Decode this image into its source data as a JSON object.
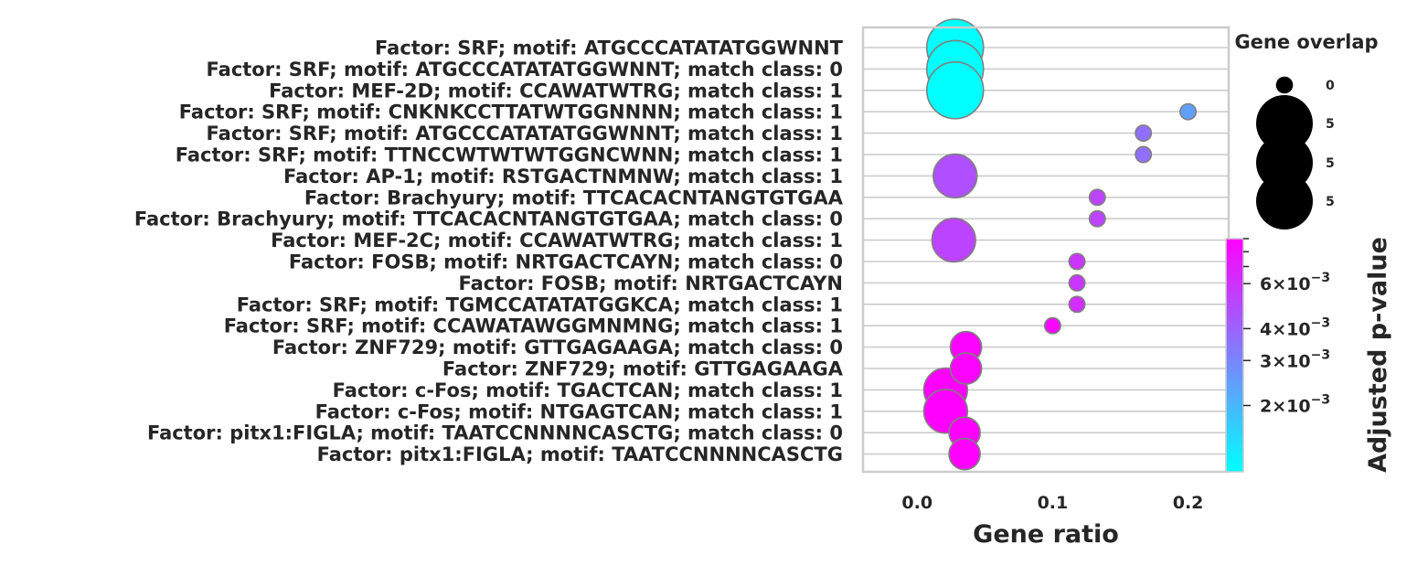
{
  "chart_data": {
    "type": "scatter",
    "xlabel": "Gene ratio",
    "xlim": [
      -0.04,
      0.23
    ],
    "xticks": [
      "0.0",
      "0.1",
      "0.2"
    ],
    "xtick_values": [
      0.0,
      0.1,
      0.2
    ],
    "grid": true,
    "colorbar": {
      "label": "Adjusted p-value",
      "scale": "log",
      "range": [
        0.0011,
        0.009
      ],
      "colormap": "cool",
      "colors": [
        "#00ffff",
        "#ff00ff"
      ],
      "ticks": [
        {
          "value": 0.006,
          "mant": "6",
          "exp": "−3"
        },
        {
          "value": 0.004,
          "mant": "4",
          "exp": "−3"
        },
        {
          "value": 0.003,
          "mant": "3",
          "exp": "−3"
        },
        {
          "value": 0.002,
          "mant": "2",
          "exp": "−3"
        }
      ]
    },
    "size_legend": {
      "title": "Gene overlap",
      "position": "top-right",
      "labels": [
        "0",
        "5",
        "5",
        "5"
      ],
      "sizes": [
        0.3,
        1,
        1,
        1
      ]
    },
    "points": [
      {
        "label": "Factor: SRF; motif: ATGCCCATATATGGWNNT",
        "x": 0.028,
        "size": 1.0,
        "padj": 0.0011
      },
      {
        "label": "Factor: SRF; motif: ATGCCCATATATGGWNNT; match class: 0",
        "x": 0.028,
        "size": 1.0,
        "padj": 0.0011
      },
      {
        "label": "Factor: MEF-2D; motif: CCAWATWTRG; match class: 1",
        "x": 0.028,
        "size": 1.0,
        "padj": 0.0011
      },
      {
        "label": "Factor: SRF; motif: CNKNKCCTTATWTGGNNNN; match class: 1",
        "x": 0.2,
        "size": 0.28,
        "padj": 0.0024
      },
      {
        "label": "Factor: SRF; motif: ATGCCCATATATGGWNNT; match class: 1",
        "x": 0.167,
        "size": 0.28,
        "padj": 0.0036
      },
      {
        "label": "Factor: SRF; motif: TTNCCWTWTWTGGNCWNN; match class: 1",
        "x": 0.167,
        "size": 0.28,
        "padj": 0.0036
      },
      {
        "label": "Factor: AP-1; motif: RSTGACTNMNW; match class: 1",
        "x": 0.028,
        "size": 0.77,
        "padj": 0.0047
      },
      {
        "label": "Factor: Brachyury; motif: TTCACACNTANGTGTGAA",
        "x": 0.133,
        "size": 0.28,
        "padj": 0.0052
      },
      {
        "label": "Factor: Brachyury; motif: TTCACACNTANGTGTGAA; match class: 0",
        "x": 0.133,
        "size": 0.28,
        "padj": 0.0052
      },
      {
        "label": "Factor: MEF-2C; motif: CCAWATWTRG; match class: 1",
        "x": 0.027,
        "size": 0.77,
        "padj": 0.0052
      },
      {
        "label": "Factor: FOSB; motif: NRTGACTCAYN; match class: 0",
        "x": 0.118,
        "size": 0.28,
        "padj": 0.0058
      },
      {
        "label": "Factor: FOSB; motif: NRTGACTCAYN",
        "x": 0.118,
        "size": 0.28,
        "padj": 0.0058
      },
      {
        "label": "Factor: SRF; motif: TGMCCATATATGGKCA; match class: 1",
        "x": 0.118,
        "size": 0.28,
        "padj": 0.0062
      },
      {
        "label": "Factor: SRF; motif: CCAWATAWGGMNMNG; match class: 1",
        "x": 0.1,
        "size": 0.28,
        "padj": 0.0085
      },
      {
        "label": "Factor: ZNF729; motif: GTTGAGAAGA; match class: 0",
        "x": 0.036,
        "size": 0.55,
        "padj": 0.0088
      },
      {
        "label": "Factor: ZNF729; motif: GTTGAGAAGA",
        "x": 0.036,
        "size": 0.55,
        "padj": 0.0088
      },
      {
        "label": "Factor: c-Fos; motif: TGACTCAN; match class: 1",
        "x": 0.021,
        "size": 0.77,
        "padj": 0.009
      },
      {
        "label": "Factor: c-Fos; motif: NTGAGTCAN; match class: 1",
        "x": 0.021,
        "size": 0.77,
        "padj": 0.009
      },
      {
        "label": "Factor: pitx1:FIGLA; motif: TAATCCNNNNCASCTG; match class: 0",
        "x": 0.035,
        "size": 0.55,
        "padj": 0.009
      },
      {
        "label": "Factor: pitx1:FIGLA; motif: TAATCCNNNNCASCTG",
        "x": 0.035,
        "size": 0.55,
        "padj": 0.009
      }
    ]
  }
}
